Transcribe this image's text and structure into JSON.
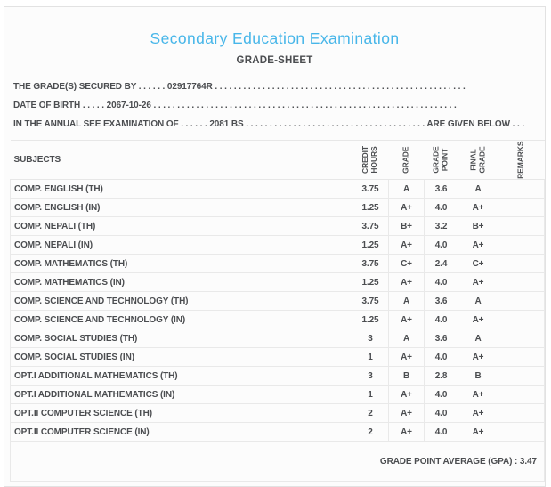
{
  "header": {
    "title": "Secondary Education Examination",
    "subtitle": "GRADE-SHEET"
  },
  "info_lines": [
    {
      "prefix": "THE GRADE(S) SECURED BY . . . . . . ",
      "value": "02917764R",
      "suffix": " . . . . . . . . . . . . . . . . . . . . . . . . . . . . . . . . . . . . . . . . . . . . . . . . . . . . ."
    },
    {
      "prefix": "DATE OF BIRTH . . . . . ",
      "value": "2067-10-26",
      "suffix": " . . . . . . . . . . . . . . . . . . . . . . . . . . . . . . . . . . . . . . . . . . . . . . . . . . . . . . . . . . . . . . . ."
    },
    {
      "prefix": "IN THE ANNUAL SEE EXAMINATION OF . . . . . . ",
      "value": "2081 BS",
      "suffix": " . . . . . . . . . . . . . . . . . . . . . . . . . . . . . . . . . . . . . . ARE GIVEN BELOW . . ."
    }
  ],
  "table": {
    "subjects_header": "SUBJECTS",
    "rotated_headers": [
      {
        "label": "CREDIT\nHOURS"
      },
      {
        "label": "GRADE"
      },
      {
        "label": "GRADE\nPOINT"
      },
      {
        "label": "FINAL\nGRADE"
      },
      {
        "label": "REMARKS"
      }
    ],
    "rows": [
      {
        "subject": "COMP. ENGLISH (TH)",
        "credit_hours": "3.75",
        "grade": "A",
        "grade_point": "3.6",
        "final_grade": "A",
        "remarks": ""
      },
      {
        "subject": "COMP. ENGLISH (IN)",
        "credit_hours": "1.25",
        "grade": "A+",
        "grade_point": "4.0",
        "final_grade": "A+",
        "remarks": ""
      },
      {
        "subject": "COMP. NEPALI (TH)",
        "credit_hours": "3.75",
        "grade": "B+",
        "grade_point": "3.2",
        "final_grade": "B+",
        "remarks": ""
      },
      {
        "subject": "COMP. NEPALI (IN)",
        "credit_hours": "1.25",
        "grade": "A+",
        "grade_point": "4.0",
        "final_grade": "A+",
        "remarks": ""
      },
      {
        "subject": "COMP. MATHEMATICS (TH)",
        "credit_hours": "3.75",
        "grade": "C+",
        "grade_point": "2.4",
        "final_grade": "C+",
        "remarks": ""
      },
      {
        "subject": "COMP. MATHEMATICS (IN)",
        "credit_hours": "1.25",
        "grade": "A+",
        "grade_point": "4.0",
        "final_grade": "A+",
        "remarks": ""
      },
      {
        "subject": "COMP. SCIENCE AND TECHNOLOGY (TH)",
        "credit_hours": "3.75",
        "grade": "A",
        "grade_point": "3.6",
        "final_grade": "A",
        "remarks": ""
      },
      {
        "subject": "COMP. SCIENCE AND TECHNOLOGY (IN)",
        "credit_hours": "1.25",
        "grade": "A+",
        "grade_point": "4.0",
        "final_grade": "A+",
        "remarks": ""
      },
      {
        "subject": "COMP. SOCIAL STUDIES (TH)",
        "credit_hours": "3",
        "grade": "A",
        "grade_point": "3.6",
        "final_grade": "A",
        "remarks": ""
      },
      {
        "subject": "COMP. SOCIAL STUDIES (IN)",
        "credit_hours": "1",
        "grade": "A+",
        "grade_point": "4.0",
        "final_grade": "A+",
        "remarks": ""
      },
      {
        "subject": "OPT.I ADDITIONAL MATHEMATICS (TH)",
        "credit_hours": "3",
        "grade": "B",
        "grade_point": "2.8",
        "final_grade": "B",
        "remarks": ""
      },
      {
        "subject": "OPT.I ADDITIONAL MATHEMATICS (IN)",
        "credit_hours": "1",
        "grade": "A+",
        "grade_point": "4.0",
        "final_grade": "A+",
        "remarks": ""
      },
      {
        "subject": "OPT.II COMPUTER SCIENCE (TH)",
        "credit_hours": "2",
        "grade": "A+",
        "grade_point": "4.0",
        "final_grade": "A+",
        "remarks": ""
      },
      {
        "subject": "OPT.II COMPUTER SCIENCE (IN)",
        "credit_hours": "2",
        "grade": "A+",
        "grade_point": "4.0",
        "final_grade": "A+",
        "remarks": ""
      }
    ]
  },
  "footer": {
    "gpa_label": "GRADE POINT AVERAGE (GPA) : ",
    "gpa_value": "3.47"
  },
  "colors": {
    "title_accent": "#47b6e9",
    "text": "#4b4d50",
    "border": "#e9e9e9",
    "card_background": "#fcfcfc"
  }
}
